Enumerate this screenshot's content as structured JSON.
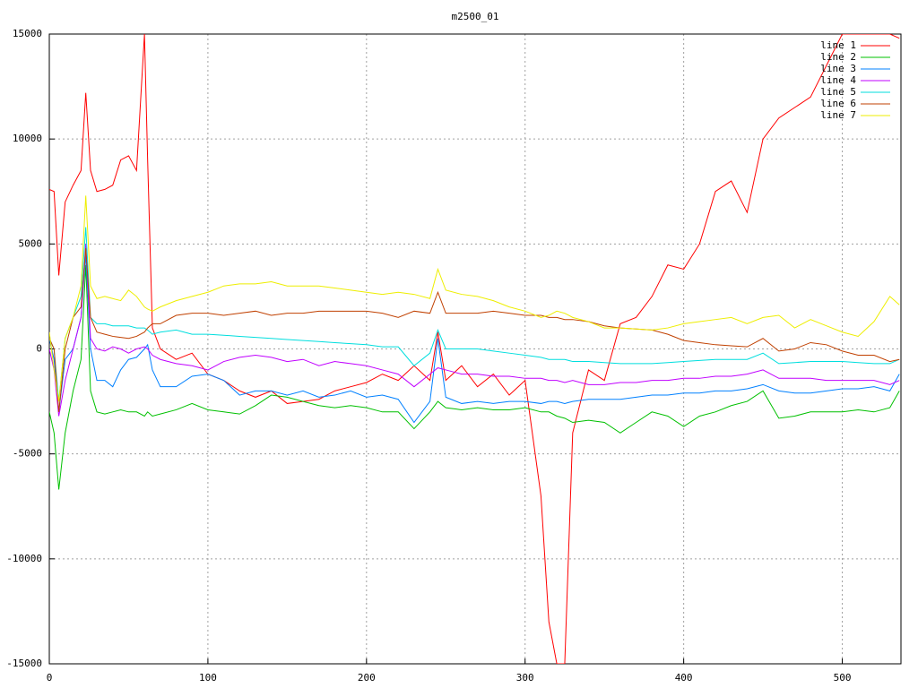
{
  "chart_data": {
    "type": "line",
    "title": "m2500_01",
    "x": [
      0,
      3,
      6,
      10,
      15,
      20,
      23,
      26,
      30,
      35,
      40,
      45,
      50,
      55,
      60,
      62,
      65,
      70,
      80,
      90,
      100,
      110,
      120,
      130,
      140,
      150,
      160,
      170,
      180,
      190,
      200,
      210,
      220,
      230,
      240,
      245,
      250,
      260,
      270,
      280,
      290,
      300,
      310,
      315,
      320,
      325,
      330,
      340,
      350,
      360,
      370,
      380,
      390,
      400,
      410,
      420,
      430,
      440,
      450,
      460,
      470,
      480,
      490,
      500,
      510,
      520,
      530,
      536
    ],
    "series": [
      {
        "name": "line 1",
        "color": "#ff0000",
        "values": [
          7600,
          7500,
          3500,
          7000,
          7800,
          8500,
          12200,
          8500,
          7500,
          7600,
          7800,
          9000,
          9200,
          8500,
          15000,
          9000,
          1000,
          0,
          -500,
          -200,
          -1200,
          -1500,
          -2000,
          -2300,
          -2000,
          -2600,
          -2500,
          -2400,
          -2000,
          -1800,
          -1600,
          -1200,
          -1500,
          -800,
          -1500,
          800,
          -1500,
          -800,
          -1800,
          -1200,
          -2200,
          -1500,
          -7000,
          -13000,
          -15000,
          -15000,
          -4000,
          -1000,
          -1500,
          1200,
          1500,
          2500,
          4000,
          3800,
          5000,
          7500,
          8000,
          6500,
          10000,
          11000,
          11500,
          12000,
          13500,
          15000,
          15000,
          15000,
          15000,
          14800
        ]
      },
      {
        "name": "line 2",
        "color": "#00c000",
        "values": [
          -3000,
          -4000,
          -6700,
          -4000,
          -2000,
          -500,
          4000,
          -2000,
          -3000,
          -3100,
          -3000,
          -2900,
          -3000,
          -3000,
          -3200,
          -3000,
          -3200,
          -3100,
          -2900,
          -2600,
          -2900,
          -3000,
          -3100,
          -2700,
          -2200,
          -2300,
          -2500,
          -2700,
          -2800,
          -2700,
          -2800,
          -3000,
          -3000,
          -3800,
          -3000,
          -2500,
          -2800,
          -2900,
          -2800,
          -2900,
          -2900,
          -2800,
          -3000,
          -3000,
          -3200,
          -3300,
          -3500,
          -3400,
          -3500,
          -4000,
          -3500,
          -3000,
          -3200,
          -3700,
          -3200,
          -3000,
          -2700,
          -2500,
          -2000,
          -3300,
          -3200,
          -3000,
          -3000,
          -3000,
          -2900,
          -3000,
          -2800,
          -2000
        ]
      },
      {
        "name": "line 3",
        "color": "#0080ff",
        "values": [
          500,
          -500,
          -3000,
          -500,
          0,
          1500,
          4500,
          0,
          -1500,
          -1500,
          -1800,
          -1000,
          -500,
          -400,
          0,
          200,
          -1000,
          -1800,
          -1800,
          -1300,
          -1200,
          -1500,
          -2200,
          -2000,
          -2000,
          -2200,
          -2000,
          -2300,
          -2200,
          -2000,
          -2300,
          -2200,
          -2400,
          -3500,
          -2500,
          500,
          -2300,
          -2600,
          -2500,
          -2600,
          -2500,
          -2500,
          -2600,
          -2500,
          -2500,
          -2600,
          -2500,
          -2400,
          -2400,
          -2400,
          -2300,
          -2200,
          -2200,
          -2100,
          -2100,
          -2000,
          -2000,
          -1900,
          -1700,
          -2000,
          -2100,
          -2100,
          -2000,
          -1900,
          -1900,
          -1800,
          -2000,
          -1200
        ]
      },
      {
        "name": "line 4",
        "color": "#c000ff",
        "values": [
          0,
          -1000,
          -3200,
          -1500,
          0,
          1500,
          5000,
          500,
          0,
          -100,
          100,
          0,
          -200,
          0,
          100,
          0,
          -300,
          -500,
          -700,
          -800,
          -1000,
          -600,
          -400,
          -300,
          -400,
          -600,
          -500,
          -800,
          -600,
          -700,
          -800,
          -1000,
          -1200,
          -1800,
          -1200,
          -900,
          -1000,
          -1200,
          -1200,
          -1300,
          -1300,
          -1400,
          -1400,
          -1500,
          -1500,
          -1600,
          -1500,
          -1700,
          -1700,
          -1600,
          -1600,
          -1500,
          -1500,
          -1400,
          -1400,
          -1300,
          -1300,
          -1200,
          -1000,
          -1400,
          -1400,
          -1400,
          -1500,
          -1500,
          -1500,
          -1500,
          -1700,
          -1500
        ]
      },
      {
        "name": "line 5",
        "color": "#00dede",
        "values": [
          500,
          0,
          -2500,
          500,
          1500,
          2500,
          5800,
          1500,
          1200,
          1200,
          1100,
          1100,
          1100,
          1000,
          1000,
          900,
          700,
          800,
          900,
          700,
          700,
          650,
          600,
          550,
          500,
          450,
          400,
          350,
          300,
          250,
          200,
          100,
          100,
          -800,
          -200,
          900,
          0,
          0,
          0,
          -100,
          -200,
          -300,
          -400,
          -500,
          -500,
          -500,
          -600,
          -600,
          -650,
          -700,
          -700,
          -700,
          -650,
          -600,
          -550,
          -500,
          -500,
          -500,
          -200,
          -700,
          -650,
          -600,
          -600,
          -600,
          -650,
          -700,
          -700,
          -500
        ]
      },
      {
        "name": "line 6",
        "color": "#c04000",
        "values": [
          500,
          0,
          -3000,
          0,
          1500,
          2000,
          4800,
          1500,
          800,
          700,
          600,
          550,
          500,
          600,
          800,
          1000,
          1200,
          1200,
          1600,
          1700,
          1700,
          1600,
          1700,
          1800,
          1600,
          1700,
          1700,
          1800,
          1800,
          1800,
          1800,
          1700,
          1500,
          1800,
          1700,
          2700,
          1700,
          1700,
          1700,
          1800,
          1700,
          1600,
          1600,
          1500,
          1500,
          1400,
          1400,
          1300,
          1100,
          1000,
          950,
          900,
          700,
          400,
          300,
          200,
          150,
          100,
          500,
          -100,
          0,
          300,
          200,
          -100,
          -300,
          -300,
          -600,
          -500
        ]
      },
      {
        "name": "line 7",
        "color": "#eeee00",
        "values": [
          800,
          -1000,
          -2500,
          500,
          1500,
          3000,
          7300,
          3000,
          2400,
          2500,
          2400,
          2300,
          2800,
          2500,
          2000,
          1900,
          1800,
          2000,
          2300,
          2500,
          2700,
          3000,
          3100,
          3100,
          3200,
          3000,
          3000,
          3000,
          2900,
          2800,
          2700,
          2600,
          2700,
          2600,
          2400,
          3800,
          2800,
          2600,
          2500,
          2300,
          2000,
          1800,
          1500,
          1600,
          1800,
          1700,
          1500,
          1300,
          1000,
          1000,
          950,
          900,
          1000,
          1200,
          1300,
          1400,
          1500,
          1200,
          1500,
          1600,
          1000,
          1400,
          1100,
          800,
          600,
          1300,
          2500,
          2100
        ]
      }
    ],
    "xlim": [
      0,
      537
    ],
    "xticks": [
      0,
      100,
      200,
      300,
      400,
      500
    ],
    "ylim": [
      -15000,
      15000
    ],
    "yticks": [
      -15000,
      -10000,
      -5000,
      0,
      5000,
      10000,
      15000
    ],
    "grid": true,
    "legend": "top-right"
  }
}
